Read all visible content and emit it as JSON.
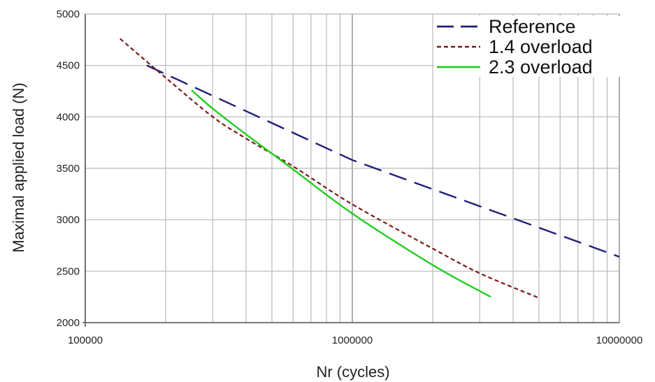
{
  "chart_data": {
    "type": "line",
    "xscale": "log",
    "xlim": [
      100000,
      10000000
    ],
    "ylim": [
      2000,
      5000
    ],
    "grid": true,
    "legend_position": "top-right",
    "xlabel": "Nr (cycles)",
    "ylabel": "Maximal applied load (N)",
    "x_ticks": [
      {
        "value": 100000,
        "label": "100000"
      },
      {
        "value": 1000000,
        "label": "1000000"
      },
      {
        "value": 10000000,
        "label": "10000000"
      }
    ],
    "y_ticks": [
      {
        "value": 2000,
        "label": "2000"
      },
      {
        "value": 2500,
        "label": "2500"
      },
      {
        "value": 3000,
        "label": "3000"
      },
      {
        "value": 3500,
        "label": "3500"
      },
      {
        "value": 4000,
        "label": "4000"
      },
      {
        "value": 4500,
        "label": "4500"
      },
      {
        "value": 5000,
        "label": "5000"
      }
    ],
    "series": [
      {
        "name": "Reference",
        "color": "#1f1f7a",
        "style": "long-dash",
        "points": [
          [
            170000,
            4500
          ],
          [
            1000000,
            3580
          ],
          [
            10000000,
            2640
          ]
        ]
      },
      {
        "name": "1.4 overload",
        "color": "#7a1a1a",
        "style": "short-dash",
        "points": [
          [
            135000,
            4760
          ],
          [
            200000,
            4380
          ],
          [
            300000,
            4000
          ],
          [
            400000,
            3790
          ],
          [
            600000,
            3520
          ],
          [
            1000000,
            3150
          ],
          [
            2000000,
            2720
          ],
          [
            3000000,
            2480
          ],
          [
            5000000,
            2240
          ]
        ]
      },
      {
        "name": "2.3 overload",
        "color": "#22cc22",
        "style": "solid",
        "points": [
          [
            250000,
            4260
          ],
          [
            300000,
            4080
          ],
          [
            400000,
            3830
          ],
          [
            600000,
            3490
          ],
          [
            1000000,
            3060
          ],
          [
            2000000,
            2560
          ],
          [
            3300000,
            2250
          ]
        ]
      }
    ]
  }
}
